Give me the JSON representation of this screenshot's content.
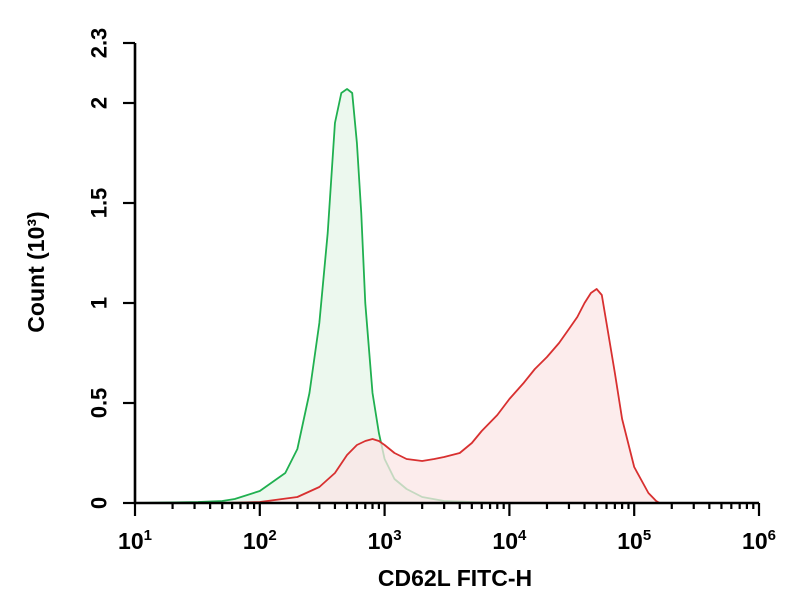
{
  "chart_data": {
    "type": "area",
    "title": "",
    "xlabel": "CD62L FITC-H",
    "ylabel": "Count (10³)",
    "xscale": "log",
    "xlim": [
      10,
      1000000
    ],
    "ylim": [
      0,
      2.3
    ],
    "grid": false,
    "legend": "none",
    "x_ticks": [
      {
        "value": 10,
        "base": "10",
        "exp": "1"
      },
      {
        "value": 100,
        "base": "10",
        "exp": "2"
      },
      {
        "value": 1000,
        "base": "10",
        "exp": "3"
      },
      {
        "value": 10000,
        "base": "10",
        "exp": "4"
      },
      {
        "value": 100000,
        "base": "10",
        "exp": "5"
      },
      {
        "value": 1000000,
        "base": "10",
        "exp": "6"
      }
    ],
    "y_ticks": [
      {
        "value": 0,
        "label": "0"
      },
      {
        "value": 0.5,
        "label": "0.5"
      },
      {
        "value": 1,
        "label": "1"
      },
      {
        "value": 1.5,
        "label": "1.5"
      },
      {
        "value": 2,
        "label": "2"
      },
      {
        "value": 2.3,
        "label": "2.3"
      }
    ],
    "series": [
      {
        "color": "#20b050",
        "fill": "#e6f5e8",
        "x": [
          10,
          32,
          50,
          63,
          100,
          160,
          200,
          250,
          300,
          350,
          400,
          450,
          500,
          550,
          600,
          650,
          700,
          800,
          900,
          1000,
          1200,
          1500,
          2000,
          3000,
          5000,
          10000
        ],
        "y": [
          0,
          0.005,
          0.01,
          0.02,
          0.06,
          0.15,
          0.27,
          0.55,
          0.9,
          1.35,
          1.9,
          2.05,
          2.07,
          2.05,
          1.8,
          1.45,
          1.0,
          0.55,
          0.35,
          0.22,
          0.12,
          0.07,
          0.03,
          0.01,
          0.005,
          0
        ]
      },
      {
        "color": "#d83030",
        "fill": "#fbe6e6",
        "x": [
          10,
          50,
          100,
          200,
          300,
          400,
          500,
          600,
          700,
          800,
          900,
          1000,
          1200,
          1500,
          2000,
          2500,
          3000,
          4000,
          5000,
          6000,
          8000,
          10000,
          13000,
          16000,
          20000,
          25000,
          30000,
          35000,
          40000,
          45000,
          50000,
          55000,
          60000,
          70000,
          80000,
          100000,
          130000,
          150000,
          160000,
          200000,
          1000000
        ],
        "y": [
          0,
          0,
          0.005,
          0.03,
          0.08,
          0.15,
          0.24,
          0.29,
          0.31,
          0.32,
          0.31,
          0.29,
          0.25,
          0.22,
          0.21,
          0.22,
          0.23,
          0.25,
          0.3,
          0.36,
          0.44,
          0.52,
          0.6,
          0.67,
          0.73,
          0.8,
          0.87,
          0.93,
          1.0,
          1.05,
          1.07,
          1.04,
          0.9,
          0.65,
          0.42,
          0.18,
          0.05,
          0.01,
          0,
          0,
          0
        ]
      }
    ]
  }
}
